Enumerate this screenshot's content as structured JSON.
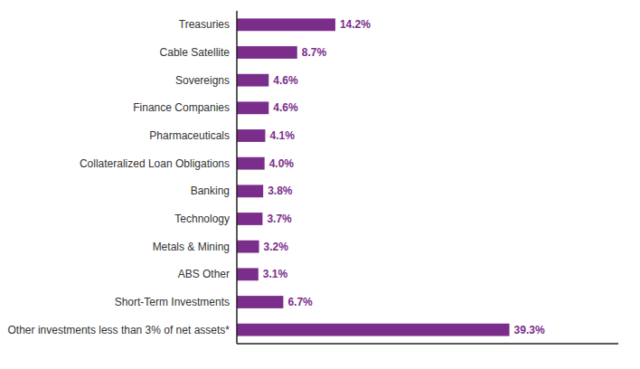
{
  "chart_data": {
    "type": "bar",
    "orientation": "horizontal",
    "categories": [
      "Other investments less than 3% of net assets*",
      "Short-Term Investments",
      "ABS Other",
      "Metals & Mining",
      "Technology",
      "Banking",
      "Collateralized Loan Obligations",
      "Pharmaceuticals",
      "Finance Companies",
      "Sovereigns",
      "Cable Satellite",
      "Treasuries"
    ],
    "values": [
      39.3,
      6.7,
      3.1,
      3.2,
      3.7,
      3.8,
      4.0,
      4.1,
      4.6,
      4.6,
      8.7,
      14.2
    ],
    "value_labels": [
      "39.3%",
      "6.7%",
      "3.1%",
      "3.2%",
      "3.7%",
      "3.8%",
      "4.0%",
      "4.1%",
      "4.6%",
      "4.6%",
      "8.7%",
      "14.2%"
    ],
    "color": "#7B2D8B",
    "xlim": [
      0,
      55
    ],
    "data_labels": true,
    "tick_labels": "y"
  }
}
